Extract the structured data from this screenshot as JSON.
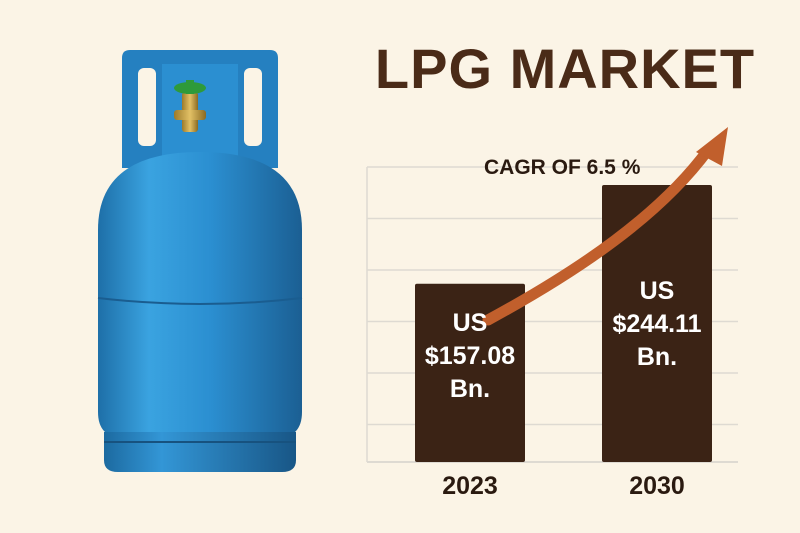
{
  "title": "LPG MARKET",
  "chart_data": {
    "type": "bar",
    "title": "LPG MARKET",
    "categories": [
      "2023",
      "2030"
    ],
    "values": [
      157.08,
      244.11
    ],
    "data_labels": [
      [
        "US",
        "$157.08",
        "Bn."
      ],
      [
        "US",
        "$244.11",
        "Bn."
      ]
    ],
    "annotation": "CAGR OF 6.5 %",
    "xlabel": "",
    "ylabel": "",
    "ylim": [
      0,
      260
    ],
    "grid": true,
    "legend": "none"
  },
  "colors": {
    "background": "#fbf4e6",
    "bar": "#3b2315",
    "arrow": "#c15f2c",
    "title": "#4a2b18",
    "cylinder": "#2b8fd1",
    "valve": "#2e9a3a",
    "grid": "#dedad2"
  },
  "icons": [
    "gas-cylinder-icon",
    "growth-arrow-icon"
  ]
}
